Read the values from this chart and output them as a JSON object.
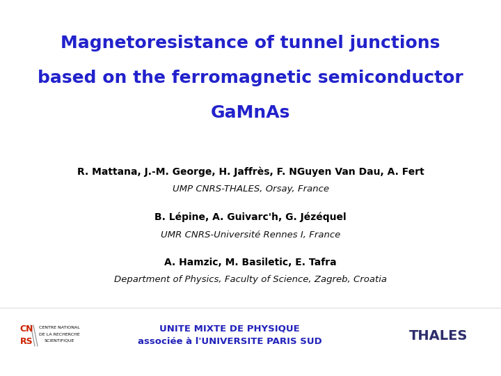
{
  "title_line1": "Magnetoresistance of tunnel junctions",
  "title_line2": "based on the ferromagnetic semiconductor",
  "title_line3": "GaMnAs",
  "title_color": "#2222cc",
  "author1_bold": "R. Mattana, J.-M. George, H. Jaffrès, F. NGuyen Van Dau, A. Fert",
  "author1_italic": "UMP CNRS-THALES, Orsay, France",
  "author2_bold": "B. Lépine, A. Guivarc'h, G. Jézéquel",
  "author2_italic": "UMR CNRS-Université Rennes I, France",
  "author3_bold": "A. Hamzic, M. Basiletic, E. Tafra",
  "author3_italic": "Department of Physics, Faculty of Science, Zagreb, Croatia",
  "footer_center_line1": "UNITE MIXTE DE PHYSIQUE",
  "footer_center_line2": "associée à l'UNIVERSITE PARIS SUD",
  "footer_right": "THALES",
  "footer_color": "#2222bb",
  "thales_color": "#2d2d6b",
  "author_bold_color": "#000000",
  "author_italic_color": "#111111",
  "bg_color": "#ffffff",
  "title_fontsize": 18,
  "author_bold_fontsize": 10,
  "author_italic_fontsize": 9.5,
  "footer_fontsize": 9.5,
  "thales_fontsize": 14,
  "cnrs_small_fontsize": 4.5
}
